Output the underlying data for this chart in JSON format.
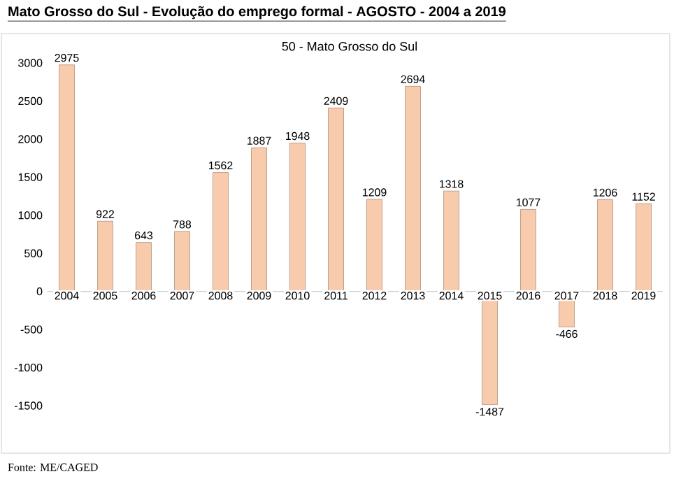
{
  "chart_data": {
    "type": "bar",
    "title": "Mato Grosso do Sul - Evolução do emprego formal - AGOSTO - 2004 a 2019",
    "subtitle": "50 - Mato Grosso do Sul",
    "categories": [
      "2004",
      "2005",
      "2006",
      "2007",
      "2008",
      "2009",
      "2010",
      "2011",
      "2012",
      "2013",
      "2014",
      "2015",
      "2016",
      "2017",
      "2018",
      "2019"
    ],
    "values": [
      2975,
      922,
      643,
      788,
      1562,
      1887,
      1948,
      2409,
      1209,
      2694,
      1318,
      -1487,
      1077,
      -466,
      1206,
      1152
    ],
    "color": "#f8cbad",
    "ylim": [
      -1500,
      3000
    ],
    "yticks": [
      -1500,
      -1000,
      -500,
      0,
      500,
      1000,
      1500,
      2000,
      2500,
      3000
    ],
    "data_labels": true,
    "grid": false,
    "annotations": [
      "Fonte: ME/CAGED"
    ]
  }
}
